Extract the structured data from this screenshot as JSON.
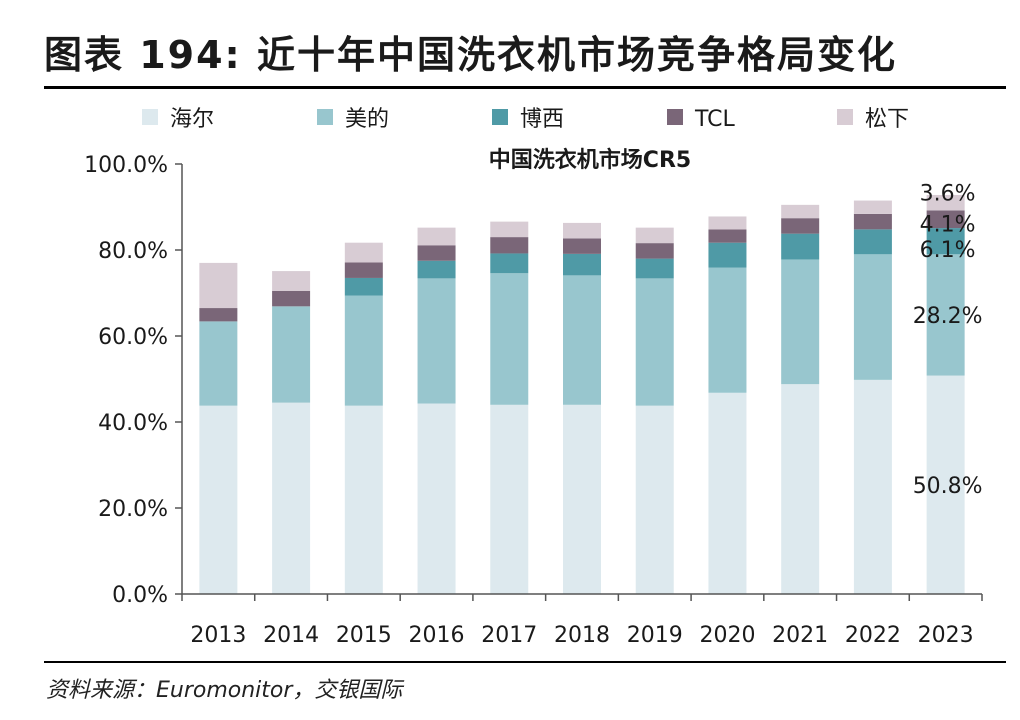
{
  "header": {
    "title": "图表 194: 近十年中国洗衣机市场竞争格局变化"
  },
  "footer": {
    "source": "资料来源：Euromonitor，交银国际"
  },
  "colors": {
    "海尔": "#dde9ee",
    "美的": "#98c6ce",
    "博西": "#4f9aa6",
    "TCL": "#7a6678",
    "松下": "#d8ccd4"
  },
  "chart_data": {
    "type": "bar",
    "stacked": true,
    "title": "中国洗衣机市场CR5",
    "xlabel": "",
    "ylabel": "",
    "ylim": [
      0,
      100
    ],
    "y_ticks": [
      "0.0%",
      "20.0%",
      "40.0%",
      "60.0%",
      "80.0%",
      "100.0%"
    ],
    "legend_position": "top",
    "categories": [
      "2013",
      "2014",
      "2015",
      "2016",
      "2017",
      "2018",
      "2019",
      "2020",
      "2021",
      "2022",
      "2023"
    ],
    "series": [
      {
        "name": "海尔",
        "values": [
          43.8,
          44.5,
          43.8,
          44.3,
          44.0,
          44.0,
          43.8,
          46.8,
          48.8,
          49.8,
          50.8
        ]
      },
      {
        "name": "美的",
        "values": [
          19.6,
          22.4,
          25.6,
          29.1,
          30.6,
          30.1,
          29.6,
          29.1,
          29.0,
          29.2,
          28.2
        ]
      },
      {
        "name": "博西",
        "values": [
          0.0,
          0.0,
          4.1,
          4.1,
          4.6,
          5.0,
          4.6,
          5.8,
          6.0,
          5.8,
          6.1
        ]
      },
      {
        "name": "TCL",
        "values": [
          3.1,
          3.6,
          3.6,
          3.6,
          3.8,
          3.6,
          3.6,
          3.1,
          3.6,
          3.6,
          4.1
        ]
      },
      {
        "name": "松下",
        "values": [
          10.5,
          4.6,
          4.6,
          4.1,
          3.6,
          3.6,
          3.6,
          3.0,
          3.1,
          3.1,
          3.6
        ]
      }
    ],
    "data_labels": [
      {
        "category": "2023",
        "series": "海尔",
        "text": "50.8%"
      },
      {
        "category": "2023",
        "series": "美的",
        "text": "28.2%"
      },
      {
        "category": "2023",
        "series": "博西",
        "text": "6.1%"
      },
      {
        "category": "2023",
        "series": "TCL",
        "text": "4.1%"
      },
      {
        "category": "2023",
        "series": "松下",
        "text": "3.6%"
      }
    ]
  }
}
